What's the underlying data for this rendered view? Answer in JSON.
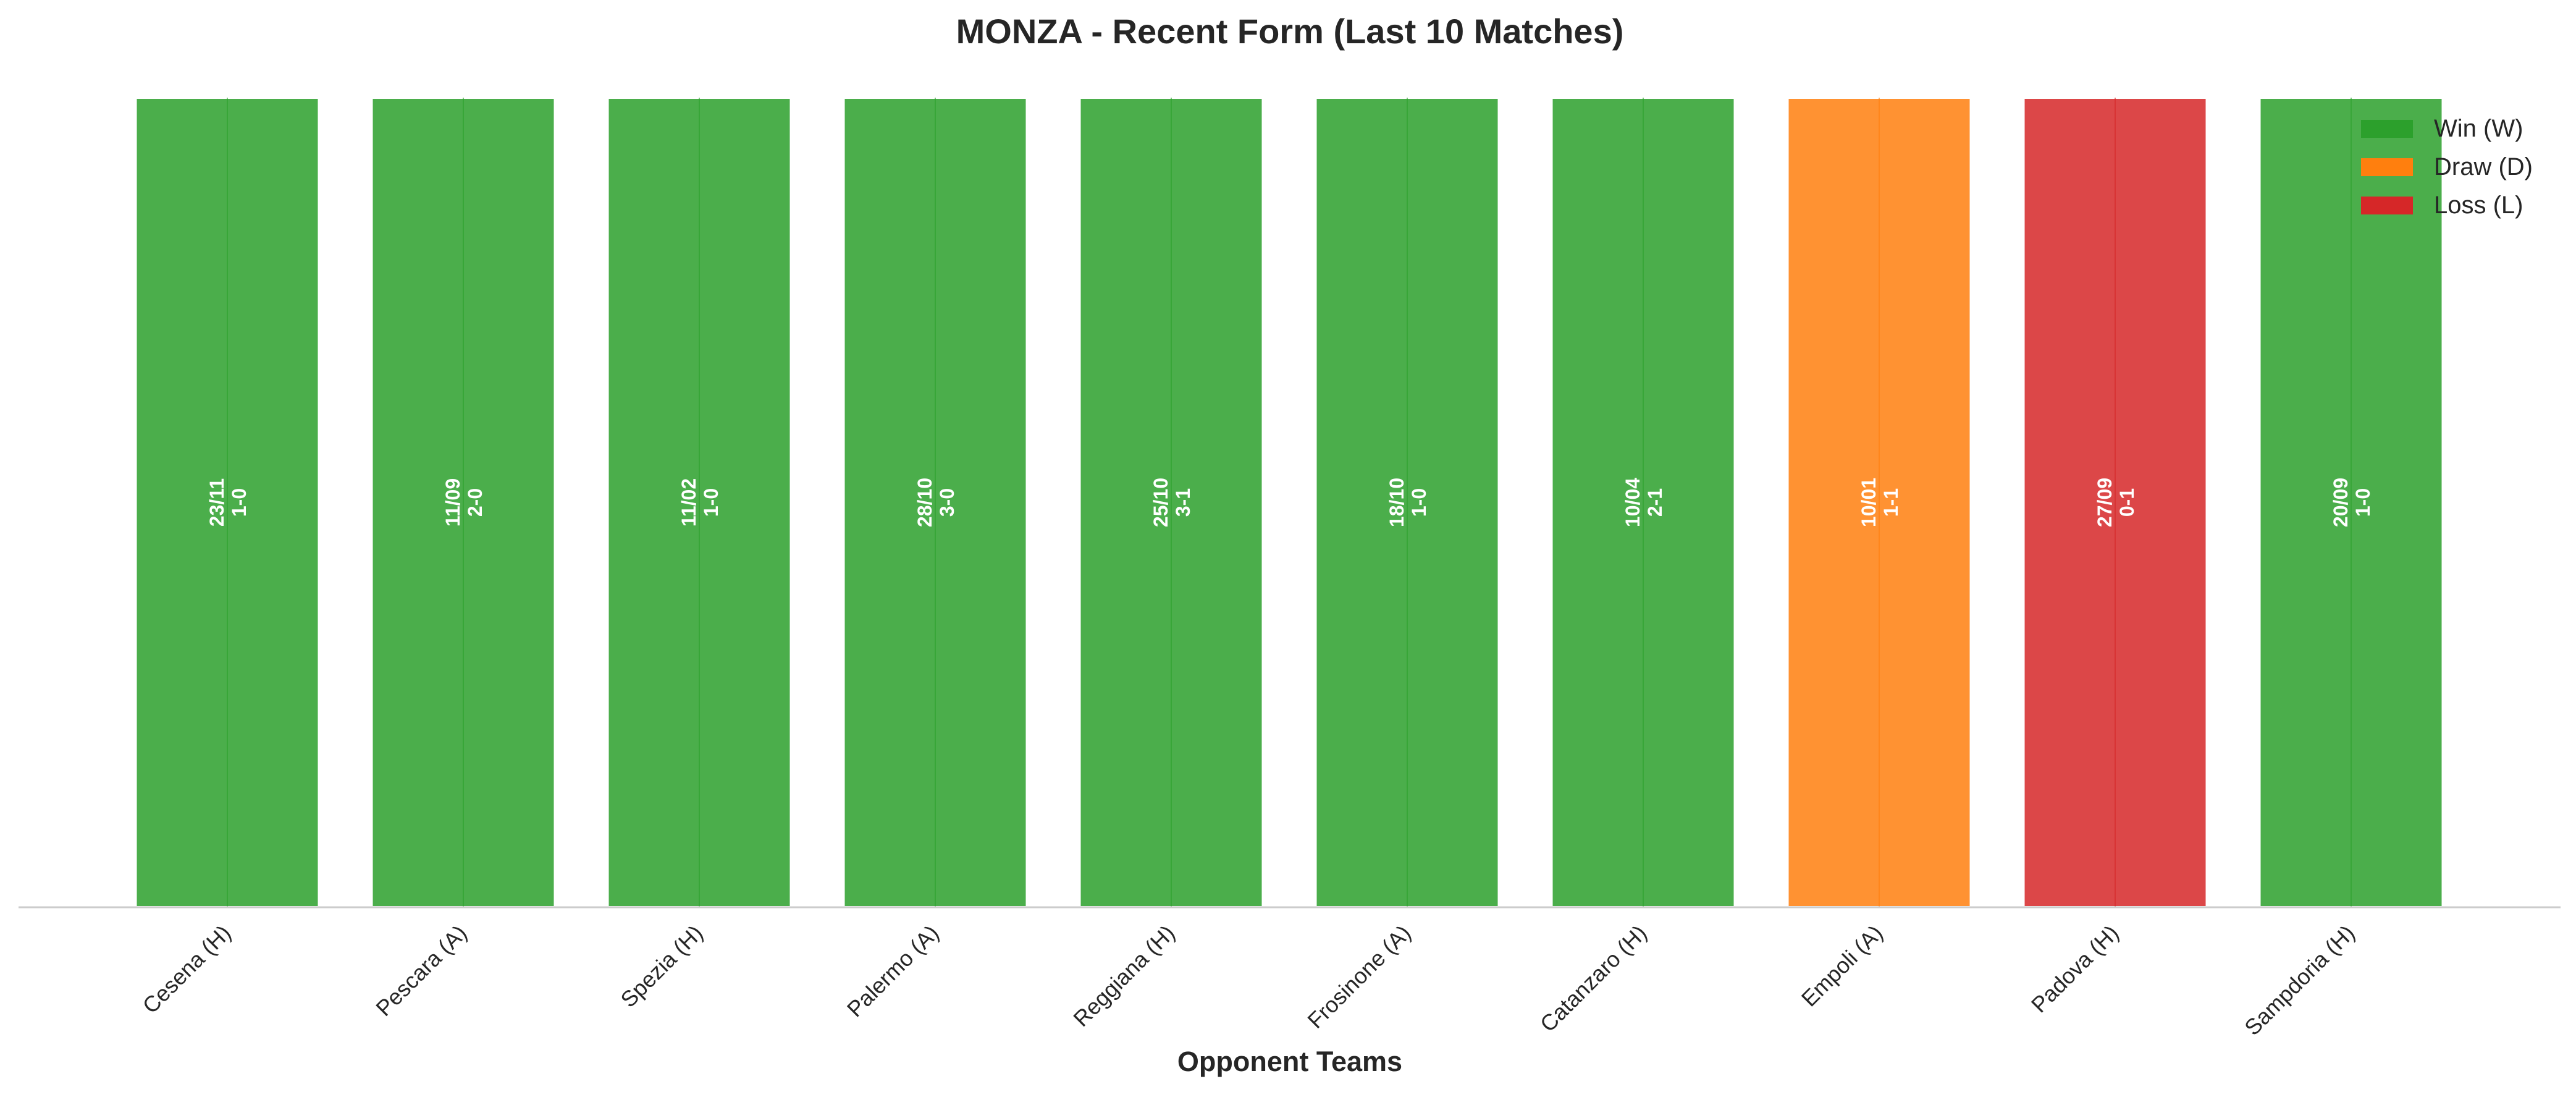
{
  "chart_data": {
    "type": "bar",
    "title": "MONZA - Recent Form (Last 10 Matches)",
    "xlabel": "Opponent Teams",
    "ylabel": "",
    "categories": [
      "Cesena (H)",
      "Pescara (A)",
      "Spezia (H)",
      "Palermo (A)",
      "Reggiana (H)",
      "Frosinone (A)",
      "Catanzaro (H)",
      "Empoli (A)",
      "Padova (H)",
      "Sampdoria (H)"
    ],
    "values": [
      1,
      1,
      1,
      1,
      1,
      1,
      1,
      1,
      1,
      1
    ],
    "results": [
      "W",
      "W",
      "W",
      "W",
      "W",
      "W",
      "W",
      "D",
      "L",
      "W"
    ],
    "dates": [
      "23/11",
      "11/09",
      "11/02",
      "28/10",
      "25/10",
      "18/10",
      "10/04",
      "10/01",
      "27/09",
      "20/09"
    ],
    "scores": [
      "1-0",
      "2-0",
      "1-0",
      "3-0",
      "3-1",
      "1-0",
      "2-1",
      "1-1",
      "0-1",
      "1-0"
    ],
    "colors": {
      "W": "#2ca02c",
      "D": "#ff7f0e",
      "L": "#d62728"
    },
    "legend": {
      "placement": "top-right",
      "entries": [
        {
          "key": "W",
          "label": "Win (W)"
        },
        {
          "key": "D",
          "label": "Draw (D)"
        },
        {
          "key": "L",
          "label": "Loss (L)"
        }
      ]
    },
    "ylim": [
      0,
      1
    ],
    "grid": false
  }
}
